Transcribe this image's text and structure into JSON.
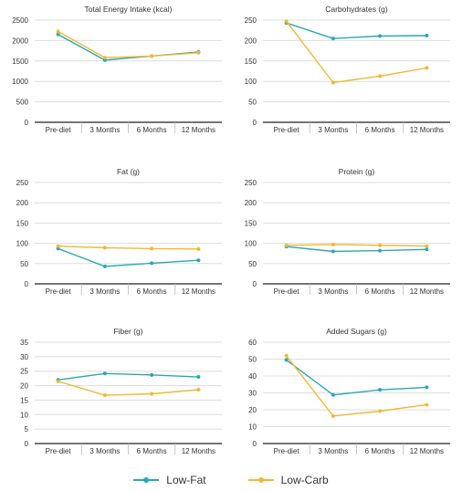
{
  "legend": [
    {
      "name": "Low-Fat",
      "color": "#2aa7b8"
    },
    {
      "name": "Low-Carb",
      "color": "#f5b731"
    }
  ],
  "chart_data": [
    {
      "type": "line",
      "title": "Total Energy Intake (kcal)",
      "categories": [
        "Pre-diet",
        "3 Months",
        "6 Months",
        "12 Months"
      ],
      "ylim": [
        0,
        2500
      ],
      "yticks": [
        0,
        500,
        1000,
        1500,
        2000,
        2500
      ],
      "series": [
        {
          "name": "Low-Fat",
          "values": [
            2150,
            1520,
            1620,
            1720
          ]
        },
        {
          "name": "Low-Carb",
          "values": [
            2220,
            1580,
            1620,
            1700
          ]
        }
      ]
    },
    {
      "type": "line",
      "title": "Carbohydrates (g)",
      "categories": [
        "Pre-diet",
        "3 Months",
        "6 Months",
        "12 Months"
      ],
      "ylim": [
        0,
        250
      ],
      "yticks": [
        0,
        50,
        100,
        150,
        200,
        250
      ],
      "series": [
        {
          "name": "Low-Fat",
          "values": [
            243,
            205,
            211,
            212
          ]
        },
        {
          "name": "Low-Carb",
          "values": [
            247,
            97,
            113,
            133
          ]
        }
      ]
    },
    {
      "type": "line",
      "title": "Fat (g)",
      "categories": [
        "Pre-diet",
        "3 Months",
        "6 Months",
        "12 Months"
      ],
      "ylim": [
        0,
        250
      ],
      "yticks": [
        0,
        50,
        100,
        150,
        200,
        250
      ],
      "series": [
        {
          "name": "Low-Fat",
          "values": [
            87,
            43,
            51,
            58
          ]
        },
        {
          "name": "Low-Carb",
          "values": [
            93,
            89,
            87,
            86
          ]
        }
      ]
    },
    {
      "type": "line",
      "title": "Protein (g)",
      "categories": [
        "Pre-diet",
        "3 Months",
        "6 Months",
        "12 Months"
      ],
      "ylim": [
        0,
        250
      ],
      "yticks": [
        0,
        50,
        100,
        150,
        200,
        250
      ],
      "series": [
        {
          "name": "Low-Fat",
          "values": [
            92,
            80,
            82,
            85
          ]
        },
        {
          "name": "Low-Carb",
          "values": [
            95,
            97,
            95,
            93
          ]
        }
      ]
    },
    {
      "type": "line",
      "title": "Fiber (g)",
      "categories": [
        "Pre-diet",
        "3 Months",
        "6 Months",
        "12 Months"
      ],
      "ylim": [
        0,
        35
      ],
      "yticks": [
        0,
        5,
        10,
        15,
        20,
        25,
        30,
        35
      ],
      "series": [
        {
          "name": "Low-Fat",
          "values": [
            22,
            24.2,
            23.7,
            23
          ]
        },
        {
          "name": "Low-Carb",
          "values": [
            21.5,
            16.7,
            17.2,
            18.6
          ]
        }
      ]
    },
    {
      "type": "line",
      "title": "Added Sugars (g)",
      "categories": [
        "Pre-diet",
        "3 Months",
        "6 Months",
        "12 Months"
      ],
      "ylim": [
        0,
        60
      ],
      "yticks": [
        0,
        10,
        20,
        30,
        40,
        50,
        60
      ],
      "series": [
        {
          "name": "Low-Fat",
          "values": [
            49.5,
            28.8,
            31.8,
            33.3
          ]
        },
        {
          "name": "Low-Carb",
          "values": [
            52,
            16.3,
            19.2,
            23
          ]
        }
      ]
    }
  ]
}
